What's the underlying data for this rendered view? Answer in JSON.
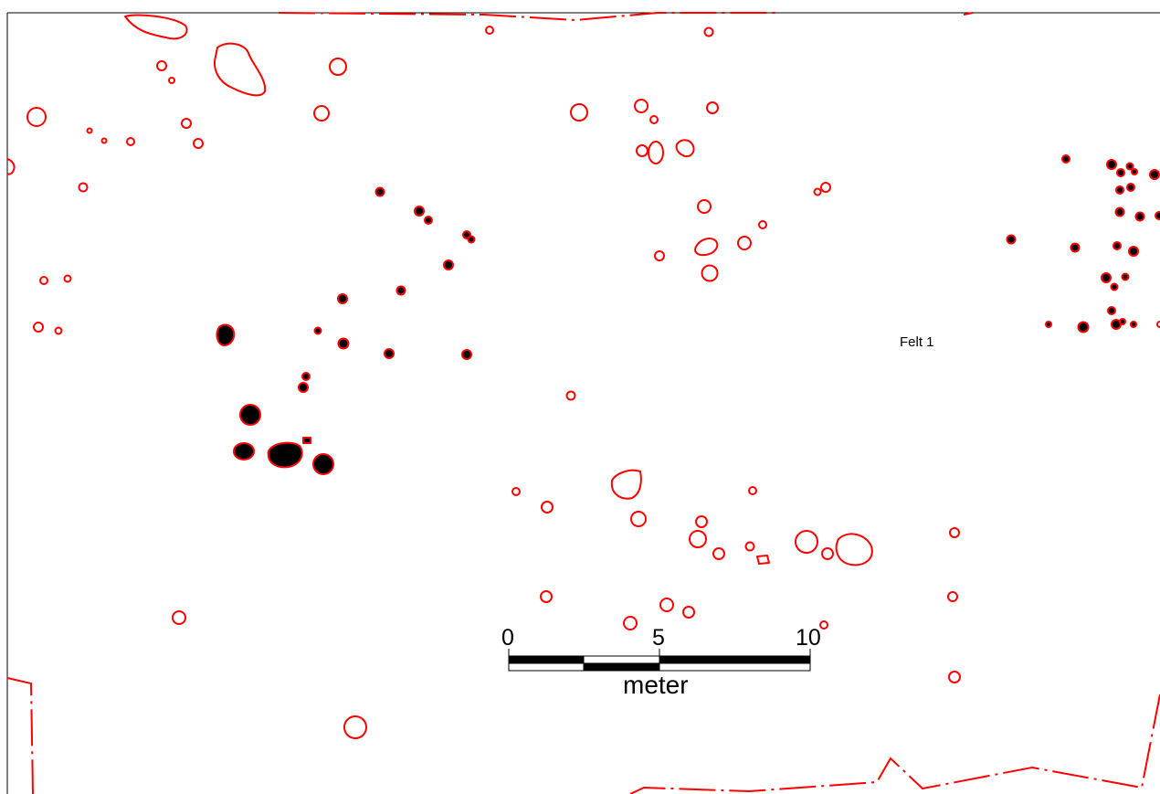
{
  "map": {
    "field_label": "Felt 1",
    "scale_bar": {
      "tick_labels": [
        "0",
        "5",
        "10"
      ],
      "unit": "meter",
      "length_value": 10,
      "segments": 4
    },
    "colors": {
      "feature_outline": "#ff0000",
      "filled_feature": "#000000",
      "boundary_line": "#ff0000",
      "frame": "#000000",
      "background": "#ffffff"
    },
    "legend_semantics": {
      "outlined_feature": "red outline (unfilled)",
      "filled_feature": "black fill with red outline",
      "boundary": "red dash-dot line"
    }
  }
}
